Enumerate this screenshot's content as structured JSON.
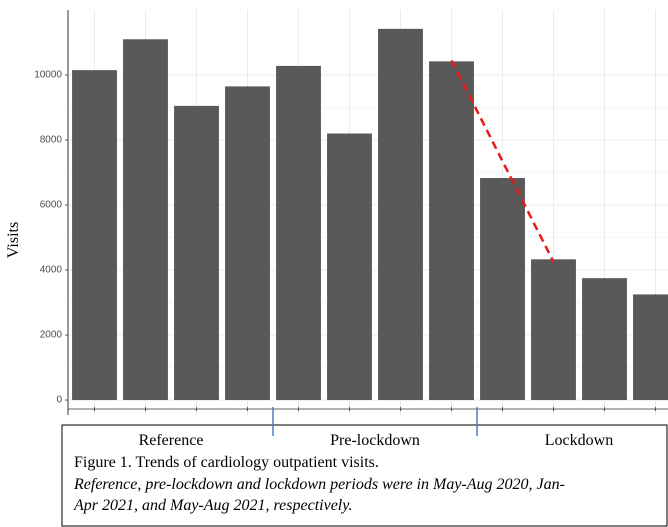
{
  "chart_data": {
    "type": "bar",
    "y_label": "Visits",
    "categories": [
      null,
      null,
      null,
      null,
      null,
      null,
      null,
      null,
      null,
      null,
      null,
      null
    ],
    "values": [
      10150,
      11100,
      9050,
      9650,
      10280,
      8200,
      11420,
      10420,
      6830,
      4330,
      3750,
      3250
    ],
    "color": "#595959",
    "trend": {
      "color": "#e8191b",
      "values": [
        null,
        null,
        null,
        null,
        null,
        null,
        null,
        10450,
        7350,
        4250,
        null,
        null
      ]
    },
    "groups": [
      {
        "name": "Reference",
        "size": 4
      },
      {
        "name": "Pre-lockdown",
        "size": 4
      },
      {
        "name": "Lockdown",
        "size": 4
      }
    ],
    "group_divider_color": "#4a7fc1",
    "ylim": [
      -460,
      12000
    ],
    "yticks": [
      0,
      2000,
      4000,
      6000,
      8000,
      10000
    ],
    "grid": true
  },
  "caption": {
    "title": "Figure 1. Trends of cardiology outpatient visits.",
    "note_lines": [
      "Reference, pre-lockdown and lockdown periods were in May-Aug 2020, Jan-",
      "Apr 2021, and May-Aug 2021, respectively."
    ]
  }
}
